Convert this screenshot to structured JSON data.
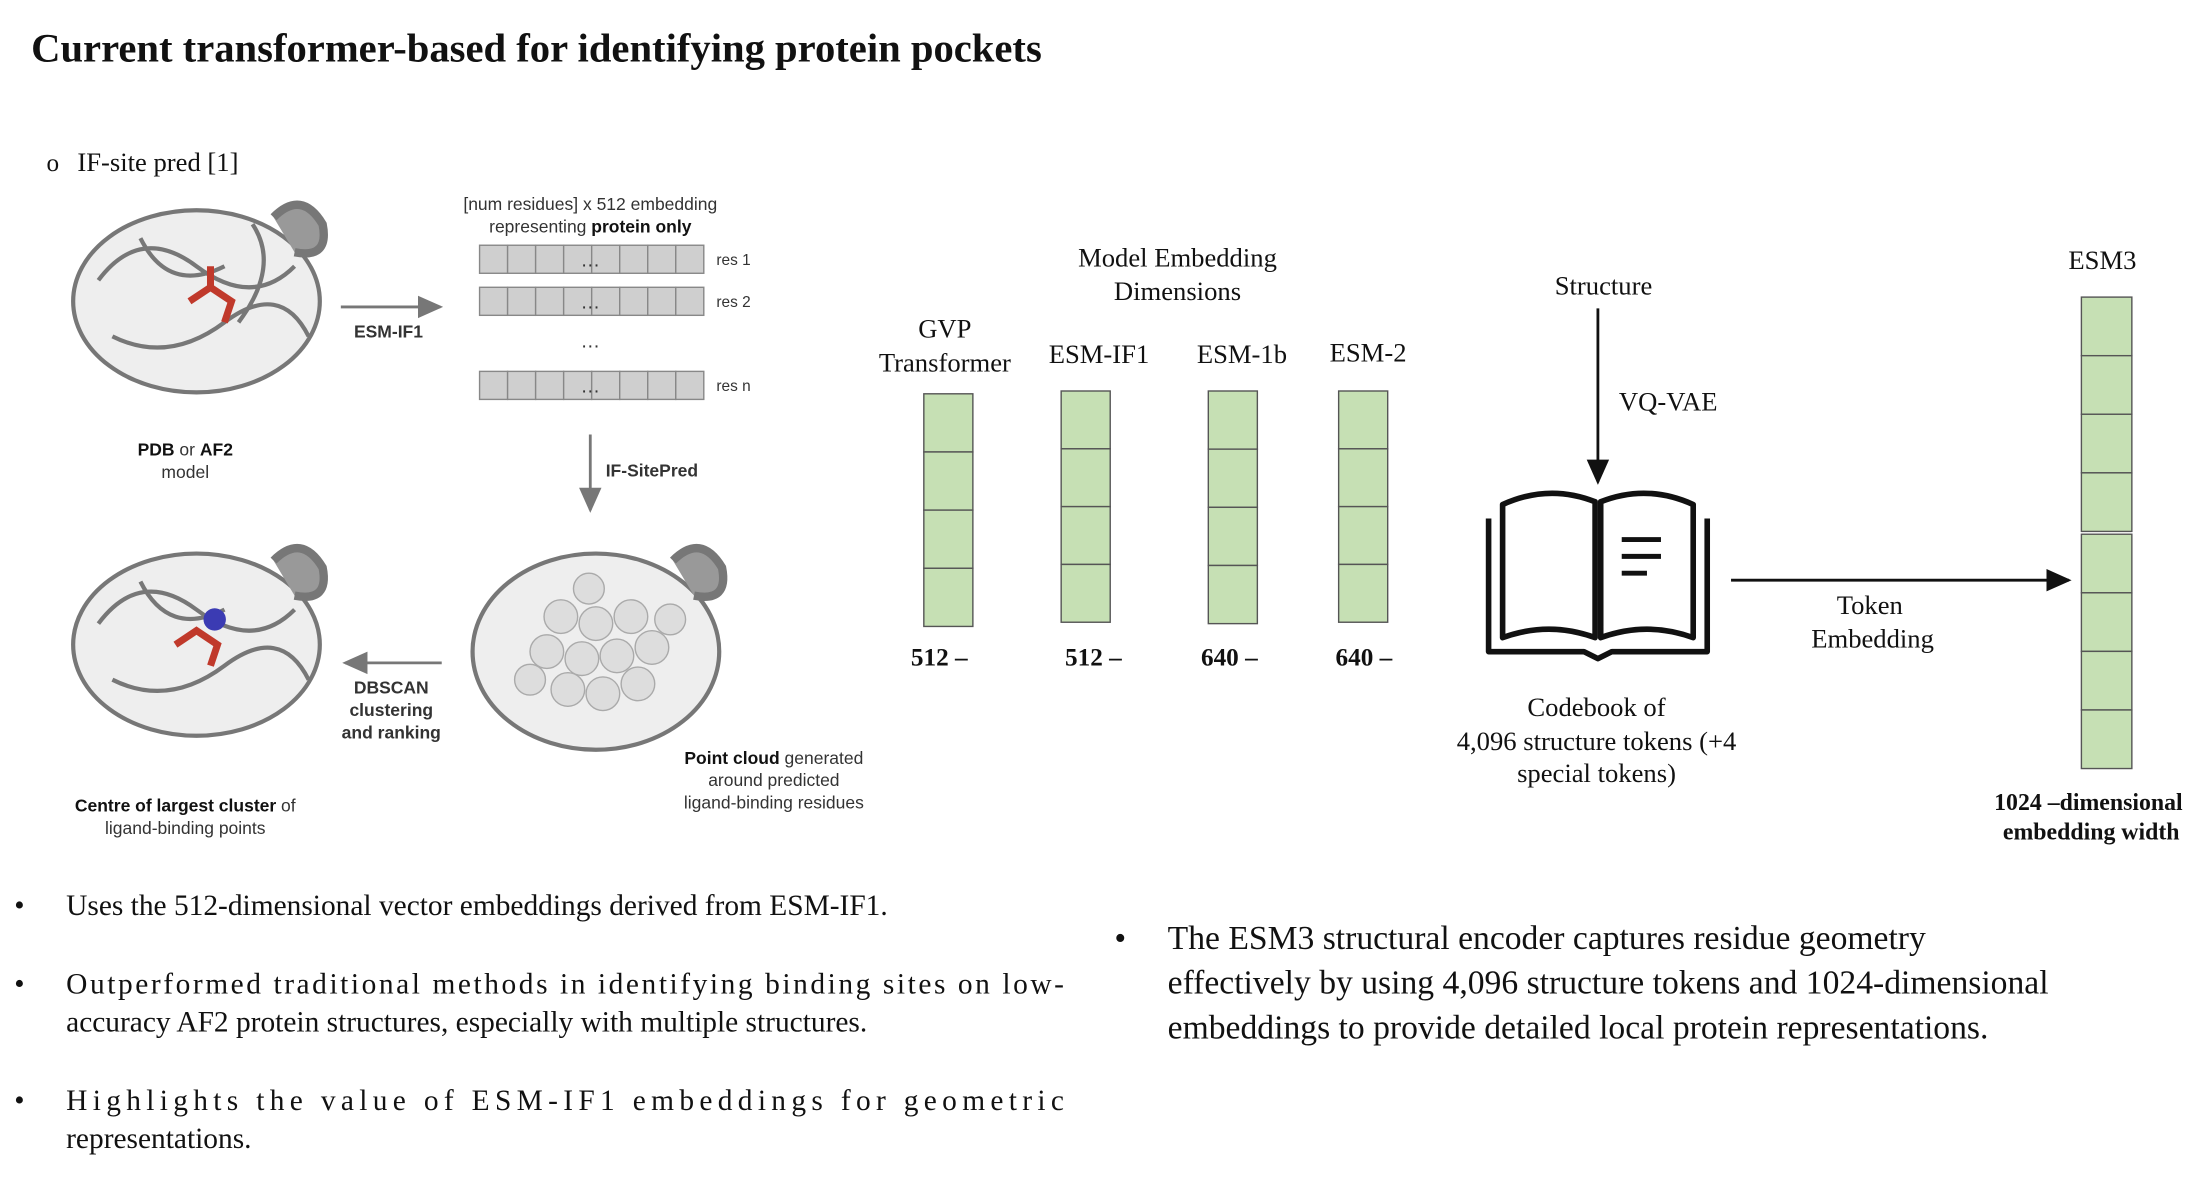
{
  "header": {
    "title": "Current transformer-based for identifying protein pockets"
  },
  "left_figure": {
    "heading": "IF-site pred [1]",
    "embedding_caption": {
      "line1": "[num residues] x 512 embedding",
      "line2_plain": "representing ",
      "line2_bold": "protein only"
    },
    "rows": [
      {
        "label": "res 1",
        "dots": "…"
      },
      {
        "label": "res 2",
        "dots": "…"
      },
      {
        "label": "res n",
        "dots": "…"
      }
    ],
    "vertical_dots": "…",
    "arrow1": "ESM-IF1",
    "arrow2": "IF-SitePred",
    "arrow3": [
      "DBSCAN",
      "clustering",
      "and ranking"
    ],
    "input_caption": {
      "bold1": "PDB",
      "plain": " or ",
      "bold2": "AF2",
      "line2": "model"
    },
    "cloud_caption": {
      "bold": "Point cloud",
      "plain": " generated",
      "line2": "around predicted",
      "line3": "ligand-binding residues"
    },
    "output_caption": {
      "bold": "Centre of largest cluster",
      "plain": " of",
      "line2": "ligand-binding points"
    }
  },
  "embedding_dims": {
    "title": [
      "Model Embedding",
      "Dimensions"
    ],
    "models": [
      {
        "name": [
          "GVP",
          "Transformer"
        ],
        "dim": "512 –"
      },
      {
        "name": [
          "ESM-IF1"
        ],
        "dim": "512 –"
      },
      {
        "name": [
          "ESM-1b"
        ],
        "dim": "640 –"
      },
      {
        "name": [
          "ESM-2"
        ],
        "dim": "640 –"
      }
    ]
  },
  "esm3_figure": {
    "structure": "Structure",
    "encoder": "VQ-VAE",
    "codebook": [
      "Codebook of",
      "4,096 structure tokens (+4",
      "special tokens)"
    ],
    "token_embedding": [
      "Token",
      "Embedding"
    ],
    "model": "ESM3",
    "width_caption": [
      "1024 –dimensional",
      "embedding width"
    ]
  },
  "left_bullets": [
    [
      "Uses the 512-dimensional vector embeddings derived from ESM-IF1."
    ],
    [
      "Outperformed traditional methods in identifying binding sites on low-",
      "accuracy AF2 protein structures, especially with multiple structures."
    ],
    [
      "Highlights the value of ESM-IF1 embeddings for geometric",
      "representations."
    ]
  ],
  "right_bullets": [
    [
      "The ESM3 structural encoder captures residue geometry",
      "effectively by using 4,096 structure tokens and 1024-dimensional",
      "embeddings to provide detailed local protein representations."
    ]
  ]
}
